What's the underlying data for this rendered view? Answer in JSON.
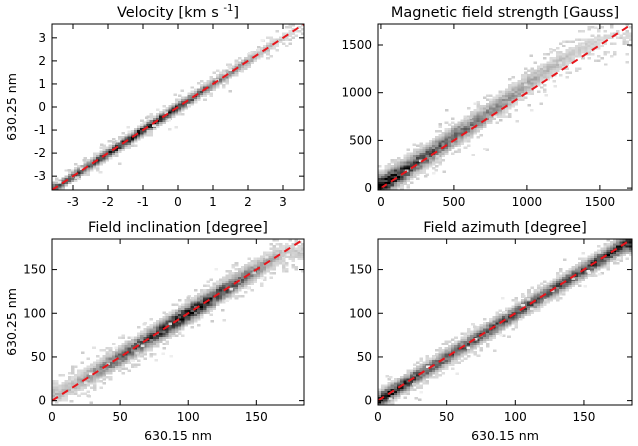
{
  "chart_data": [
    {
      "type": "heatmap",
      "title": "Velocity [km s",
      "title_superscript": "-1",
      "title_suffix": "]",
      "xlabel": "",
      "ylabel": "630.25 nm",
      "xlim": [
        -3.6,
        3.6
      ],
      "ylim": [
        -3.6,
        3.6
      ],
      "xticks": [
        -3,
        -2,
        -1,
        0,
        1,
        2,
        3
      ],
      "yticks": [
        -3,
        -2,
        -1,
        0,
        1,
        2,
        3
      ],
      "reference_line": {
        "style": "dashed",
        "color": "#e8151b",
        "x": [
          -3.6,
          3.6
        ],
        "y": [
          -3.6,
          3.6
        ]
      },
      "density": {
        "ridge": [
          [
            -3.5,
            -3.5
          ],
          [
            -3,
            -3
          ],
          [
            -2,
            -2
          ],
          [
            -1,
            -1
          ],
          [
            0,
            0
          ],
          [
            1,
            1
          ],
          [
            2,
            2
          ],
          [
            3,
            3
          ],
          [
            3.5,
            3.5
          ]
        ],
        "ridge_peak": [
          [
            -2.5,
            0.55
          ],
          [
            -1.5,
            0.9
          ],
          [
            -0.5,
            0.85
          ],
          [
            0.0,
            0.8
          ],
          [
            0.5,
            0.6
          ],
          [
            1.5,
            0.35
          ],
          [
            2.5,
            0.15
          ],
          [
            3.3,
            0.05
          ]
        ],
        "spread": 0.12
      }
    },
    {
      "type": "heatmap",
      "title": "Magnetic field strength [Gauss]",
      "xlabel": "",
      "ylabel": "",
      "xlim": [
        -20,
        1720
      ],
      "ylim": [
        -20,
        1720
      ],
      "xticks": [
        0,
        500,
        1000,
        1500
      ],
      "yticks": [
        0,
        500,
        1000,
        1500
      ],
      "reference_line": {
        "style": "dashed",
        "color": "#e8151b",
        "x": [
          0,
          1720
        ],
        "y": [
          0,
          1720
        ]
      },
      "density": {
        "ridge": [
          [
            0,
            30
          ],
          [
            200,
            220
          ],
          [
            500,
            540
          ],
          [
            800,
            850
          ],
          [
            1000,
            1090
          ],
          [
            1200,
            1300
          ],
          [
            1400,
            1490
          ],
          [
            1600,
            1600
          ]
        ],
        "ridge_peak": [
          [
            50,
            1.0
          ],
          [
            200,
            0.7
          ],
          [
            400,
            0.5
          ],
          [
            700,
            0.35
          ],
          [
            1000,
            0.2
          ],
          [
            1300,
            0.1
          ],
          [
            1600,
            0.04
          ]
        ],
        "spread": 60
      }
    },
    {
      "type": "heatmap",
      "title": "Field inclination [degree]",
      "xlabel": "630.15 nm",
      "ylabel": "630.25 nm",
      "xlim": [
        0,
        185
      ],
      "ylim": [
        -5,
        185
      ],
      "xticks": [
        0,
        50,
        100,
        150
      ],
      "yticks": [
        0,
        50,
        100,
        150
      ],
      "reference_line": {
        "style": "dashed",
        "color": "#e8151b",
        "x": [
          0,
          185
        ],
        "y": [
          0,
          185
        ]
      },
      "density": {
        "ridge": [
          [
            5,
            8
          ],
          [
            20,
            22
          ],
          [
            50,
            50
          ],
          [
            90,
            90
          ],
          [
            120,
            120
          ],
          [
            150,
            150
          ],
          [
            170,
            170
          ]
        ],
        "ridge_peak": [
          [
            15,
            0.15
          ],
          [
            40,
            0.4
          ],
          [
            70,
            0.6
          ],
          [
            95,
            0.9
          ],
          [
            120,
            0.7
          ],
          [
            145,
            0.4
          ],
          [
            170,
            0.1
          ]
        ],
        "spread": 6
      }
    },
    {
      "type": "heatmap",
      "title": "Field azimuth [degree]",
      "xlabel": "630.15 nm",
      "ylabel": "",
      "xlim": [
        0,
        185
      ],
      "ylim": [
        -5,
        185
      ],
      "xticks": [
        0,
        50,
        100,
        150
      ],
      "yticks": [
        0,
        50,
        100,
        150
      ],
      "reference_line": {
        "style": "dashed",
        "color": "#e8151b",
        "x": [
          0,
          185
        ],
        "y": [
          0,
          185
        ]
      },
      "density": {
        "ridge": [
          [
            0,
            0
          ],
          [
            50,
            50
          ],
          [
            100,
            100
          ],
          [
            150,
            150
          ],
          [
            180,
            180
          ]
        ],
        "ridge_peak": [
          [
            5,
            0.9
          ],
          [
            30,
            0.6
          ],
          [
            60,
            0.55
          ],
          [
            90,
            0.6
          ],
          [
            120,
            0.55
          ],
          [
            150,
            0.6
          ],
          [
            178,
            0.9
          ]
        ],
        "spread": 5
      }
    }
  ]
}
